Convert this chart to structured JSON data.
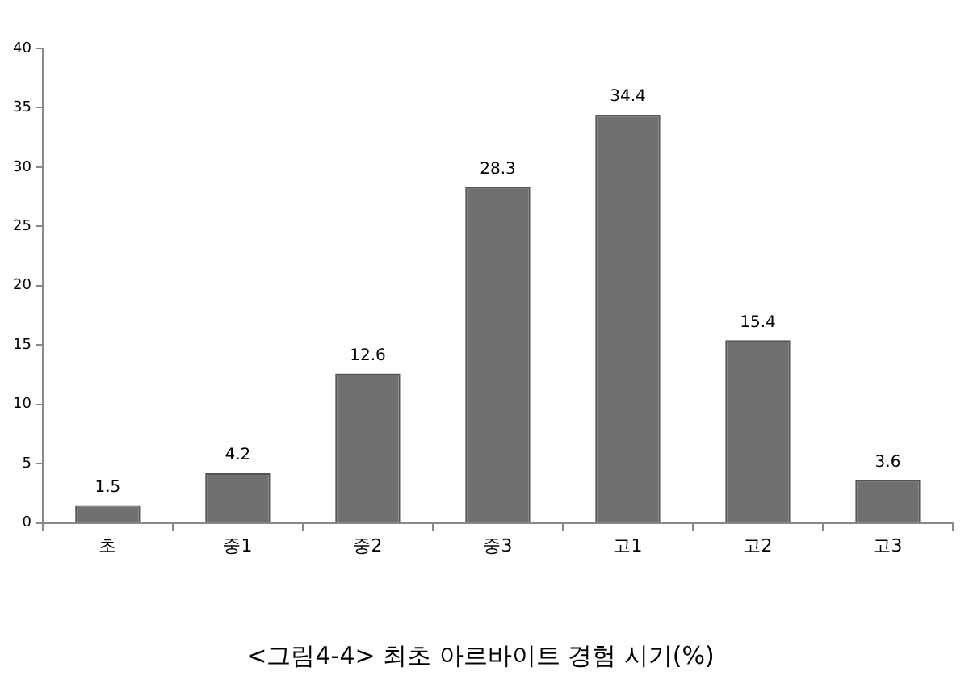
{
  "chart_data": {
    "type": "bar",
    "title": "<그림4-4> 최초 아르바이트 경험 시기(%)",
    "categories": [
      "초",
      "중1",
      "중2",
      "중3",
      "고1",
      "고2",
      "고3"
    ],
    "values": [
      1.5,
      4.2,
      12.6,
      28.3,
      34.4,
      15.4,
      3.6
    ],
    "color": "#707070",
    "ylim": [
      0,
      40
    ],
    "yticks": [
      0,
      5,
      10,
      15,
      20,
      25,
      30,
      35,
      40
    ],
    "grid": false,
    "legend": false,
    "data_labels": true
  }
}
